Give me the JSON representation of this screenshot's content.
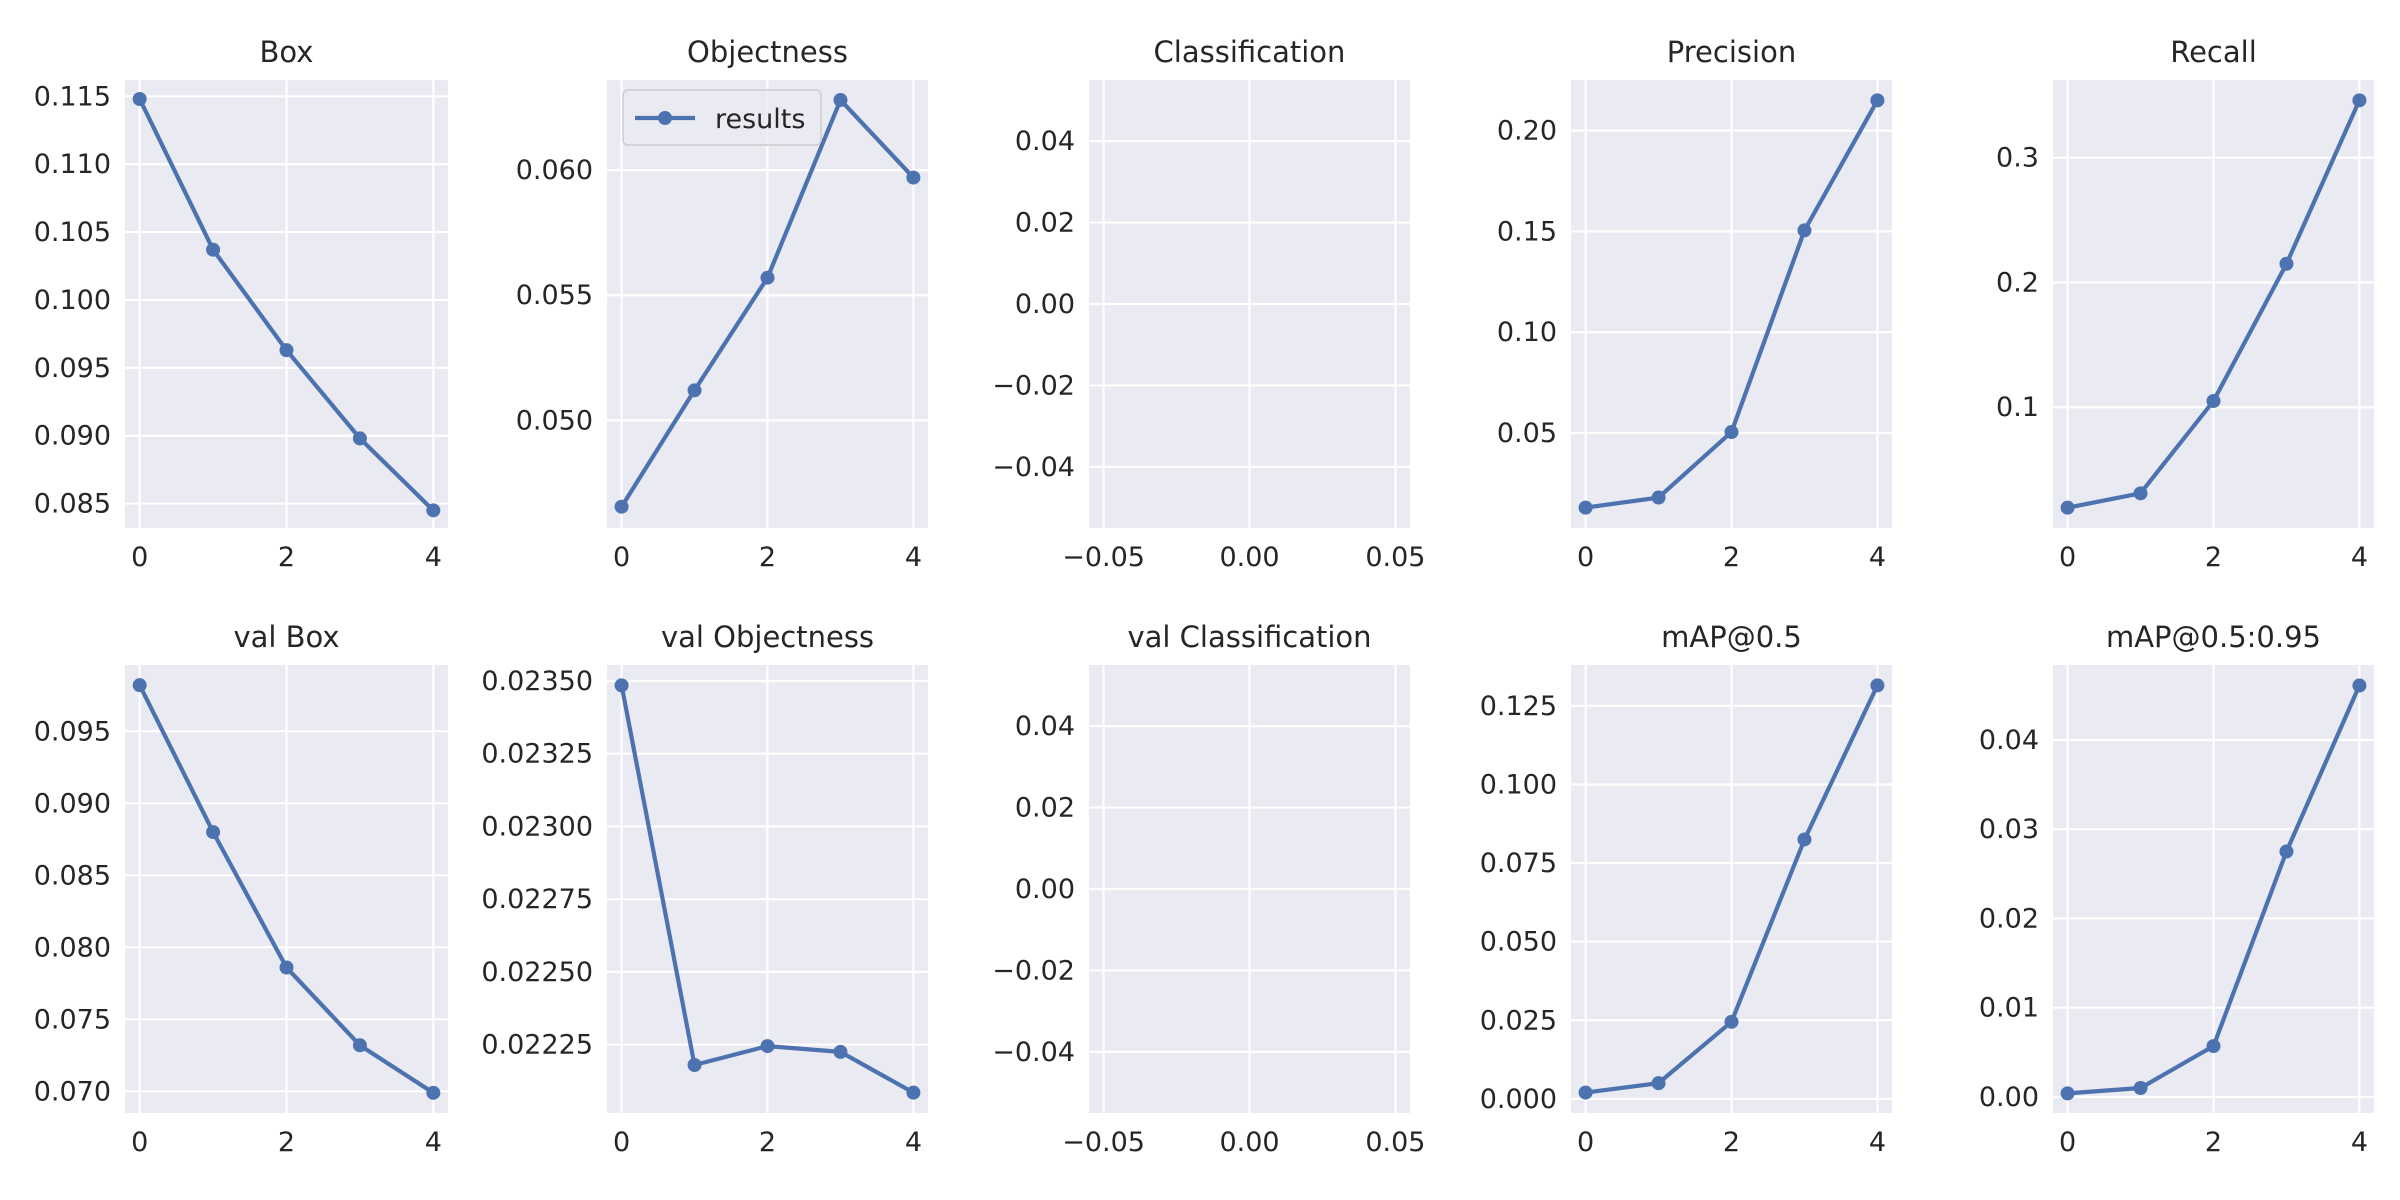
{
  "colors": {
    "line": "#4c72b0",
    "axes_bg": "#eaeaf2",
    "grid": "#ffffff",
    "text": "#262626"
  },
  "legend": {
    "label": "results",
    "placement": "upper-left",
    "panel_index": 1
  },
  "chart_data": [
    {
      "type": "line",
      "title": "Box",
      "x": [
        0,
        1,
        2,
        3,
        4
      ],
      "y": [
        0.1148,
        0.1037,
        0.0963,
        0.0898,
        0.0845
      ],
      "xlim": [
        -0.2,
        4.2
      ],
      "ylim": [
        0.0832,
        0.1162
      ],
      "xticks": [
        0,
        2,
        4
      ],
      "yticks": [
        0.085,
        0.09,
        0.095,
        0.1,
        0.105,
        0.11,
        0.115
      ],
      "ydecimals": 3
    },
    {
      "type": "line",
      "title": "Objectness",
      "x": [
        0,
        1,
        2,
        3,
        4
      ],
      "y": [
        0.04655,
        0.0512,
        0.0557,
        0.0628,
        0.0597
      ],
      "xlim": [
        -0.2,
        4.2
      ],
      "ylim": [
        0.0457,
        0.0636
      ],
      "xticks": [
        0,
        2,
        4
      ],
      "yticks": [
        0.05,
        0.055,
        0.06
      ],
      "ydecimals": 3
    },
    {
      "type": "line",
      "title": "Classification",
      "x": [],
      "y": [],
      "xlim": [
        -0.055,
        0.055
      ],
      "ylim": [
        -0.055,
        0.055
      ],
      "xticks": [
        -0.05,
        0.0,
        0.05
      ],
      "yticks": [
        -0.04,
        -0.02,
        0.0,
        0.02,
        0.04
      ],
      "xdecimals": 2,
      "ydecimals": 2
    },
    {
      "type": "line",
      "title": "Precision",
      "x": [
        0,
        1,
        2,
        3,
        4
      ],
      "y": [
        0.013,
        0.018,
        0.0505,
        0.1505,
        0.215
      ],
      "xlim": [
        -0.2,
        4.2
      ],
      "ylim": [
        0.0029,
        0.2251
      ],
      "xticks": [
        0,
        2,
        4
      ],
      "yticks": [
        0.05,
        0.1,
        0.15,
        0.2
      ],
      "ydecimals": 2
    },
    {
      "type": "line",
      "title": "Recall",
      "x": [
        0,
        1,
        2,
        3,
        4
      ],
      "y": [
        0.0195,
        0.031,
        0.105,
        0.215,
        0.346
      ],
      "xlim": [
        -0.2,
        4.2
      ],
      "ylim": [
        0.0032,
        0.3623
      ],
      "xticks": [
        0,
        2,
        4
      ],
      "yticks": [
        0.1,
        0.2,
        0.3
      ],
      "ydecimals": 1
    },
    {
      "type": "line",
      "title": "val Box",
      "x": [
        0,
        1,
        2,
        3,
        4
      ],
      "y": [
        0.0982,
        0.088,
        0.0786,
        0.0732,
        0.0699
      ],
      "xlim": [
        -0.2,
        4.2
      ],
      "ylim": [
        0.0685,
        0.0996
      ],
      "xticks": [
        0,
        2,
        4
      ],
      "yticks": [
        0.07,
        0.075,
        0.08,
        0.085,
        0.09,
        0.095
      ],
      "ydecimals": 3
    },
    {
      "type": "line",
      "title": "val Objectness",
      "x": [
        0,
        1,
        2,
        3,
        4
      ],
      "y": [
        0.023485,
        0.02218,
        0.022245,
        0.022225,
        0.022085
      ],
      "xlim": [
        -0.2,
        4.2
      ],
      "ylim": [
        0.022015,
        0.023555
      ],
      "xticks": [
        0,
        2,
        4
      ],
      "yticks": [
        0.02225,
        0.0225,
        0.02275,
        0.023,
        0.02325,
        0.0235
      ],
      "ydecimals": 5
    },
    {
      "type": "line",
      "title": "val Classification",
      "x": [],
      "y": [],
      "xlim": [
        -0.055,
        0.055
      ],
      "ylim": [
        -0.055,
        0.055
      ],
      "xticks": [
        -0.05,
        0.0,
        0.05
      ],
      "yticks": [
        -0.04,
        -0.02,
        0.0,
        0.02,
        0.04
      ],
      "xdecimals": 2,
      "ydecimals": 2
    },
    {
      "type": "line",
      "title": "mAP@0.5",
      "x": [
        0,
        1,
        2,
        3,
        4
      ],
      "y": [
        0.002,
        0.005,
        0.0245,
        0.0825,
        0.1315
      ],
      "xlim": [
        -0.2,
        4.2
      ],
      "ylim": [
        -0.0045,
        0.138
      ],
      "xticks": [
        0,
        2,
        4
      ],
      "yticks": [
        0.0,
        0.025,
        0.05,
        0.075,
        0.1,
        0.125
      ],
      "ydecimals": 3
    },
    {
      "type": "line",
      "title": "mAP@0.5:0.95",
      "x": [
        0,
        1,
        2,
        3,
        4
      ],
      "y": [
        0.0004,
        0.001,
        0.0057,
        0.0275,
        0.0461
      ],
      "xlim": [
        -0.2,
        4.2
      ],
      "ylim": [
        -0.0018,
        0.0484
      ],
      "xticks": [
        0,
        2,
        4
      ],
      "yticks": [
        0.0,
        0.01,
        0.02,
        0.03,
        0.04
      ],
      "ydecimals": 2
    }
  ]
}
